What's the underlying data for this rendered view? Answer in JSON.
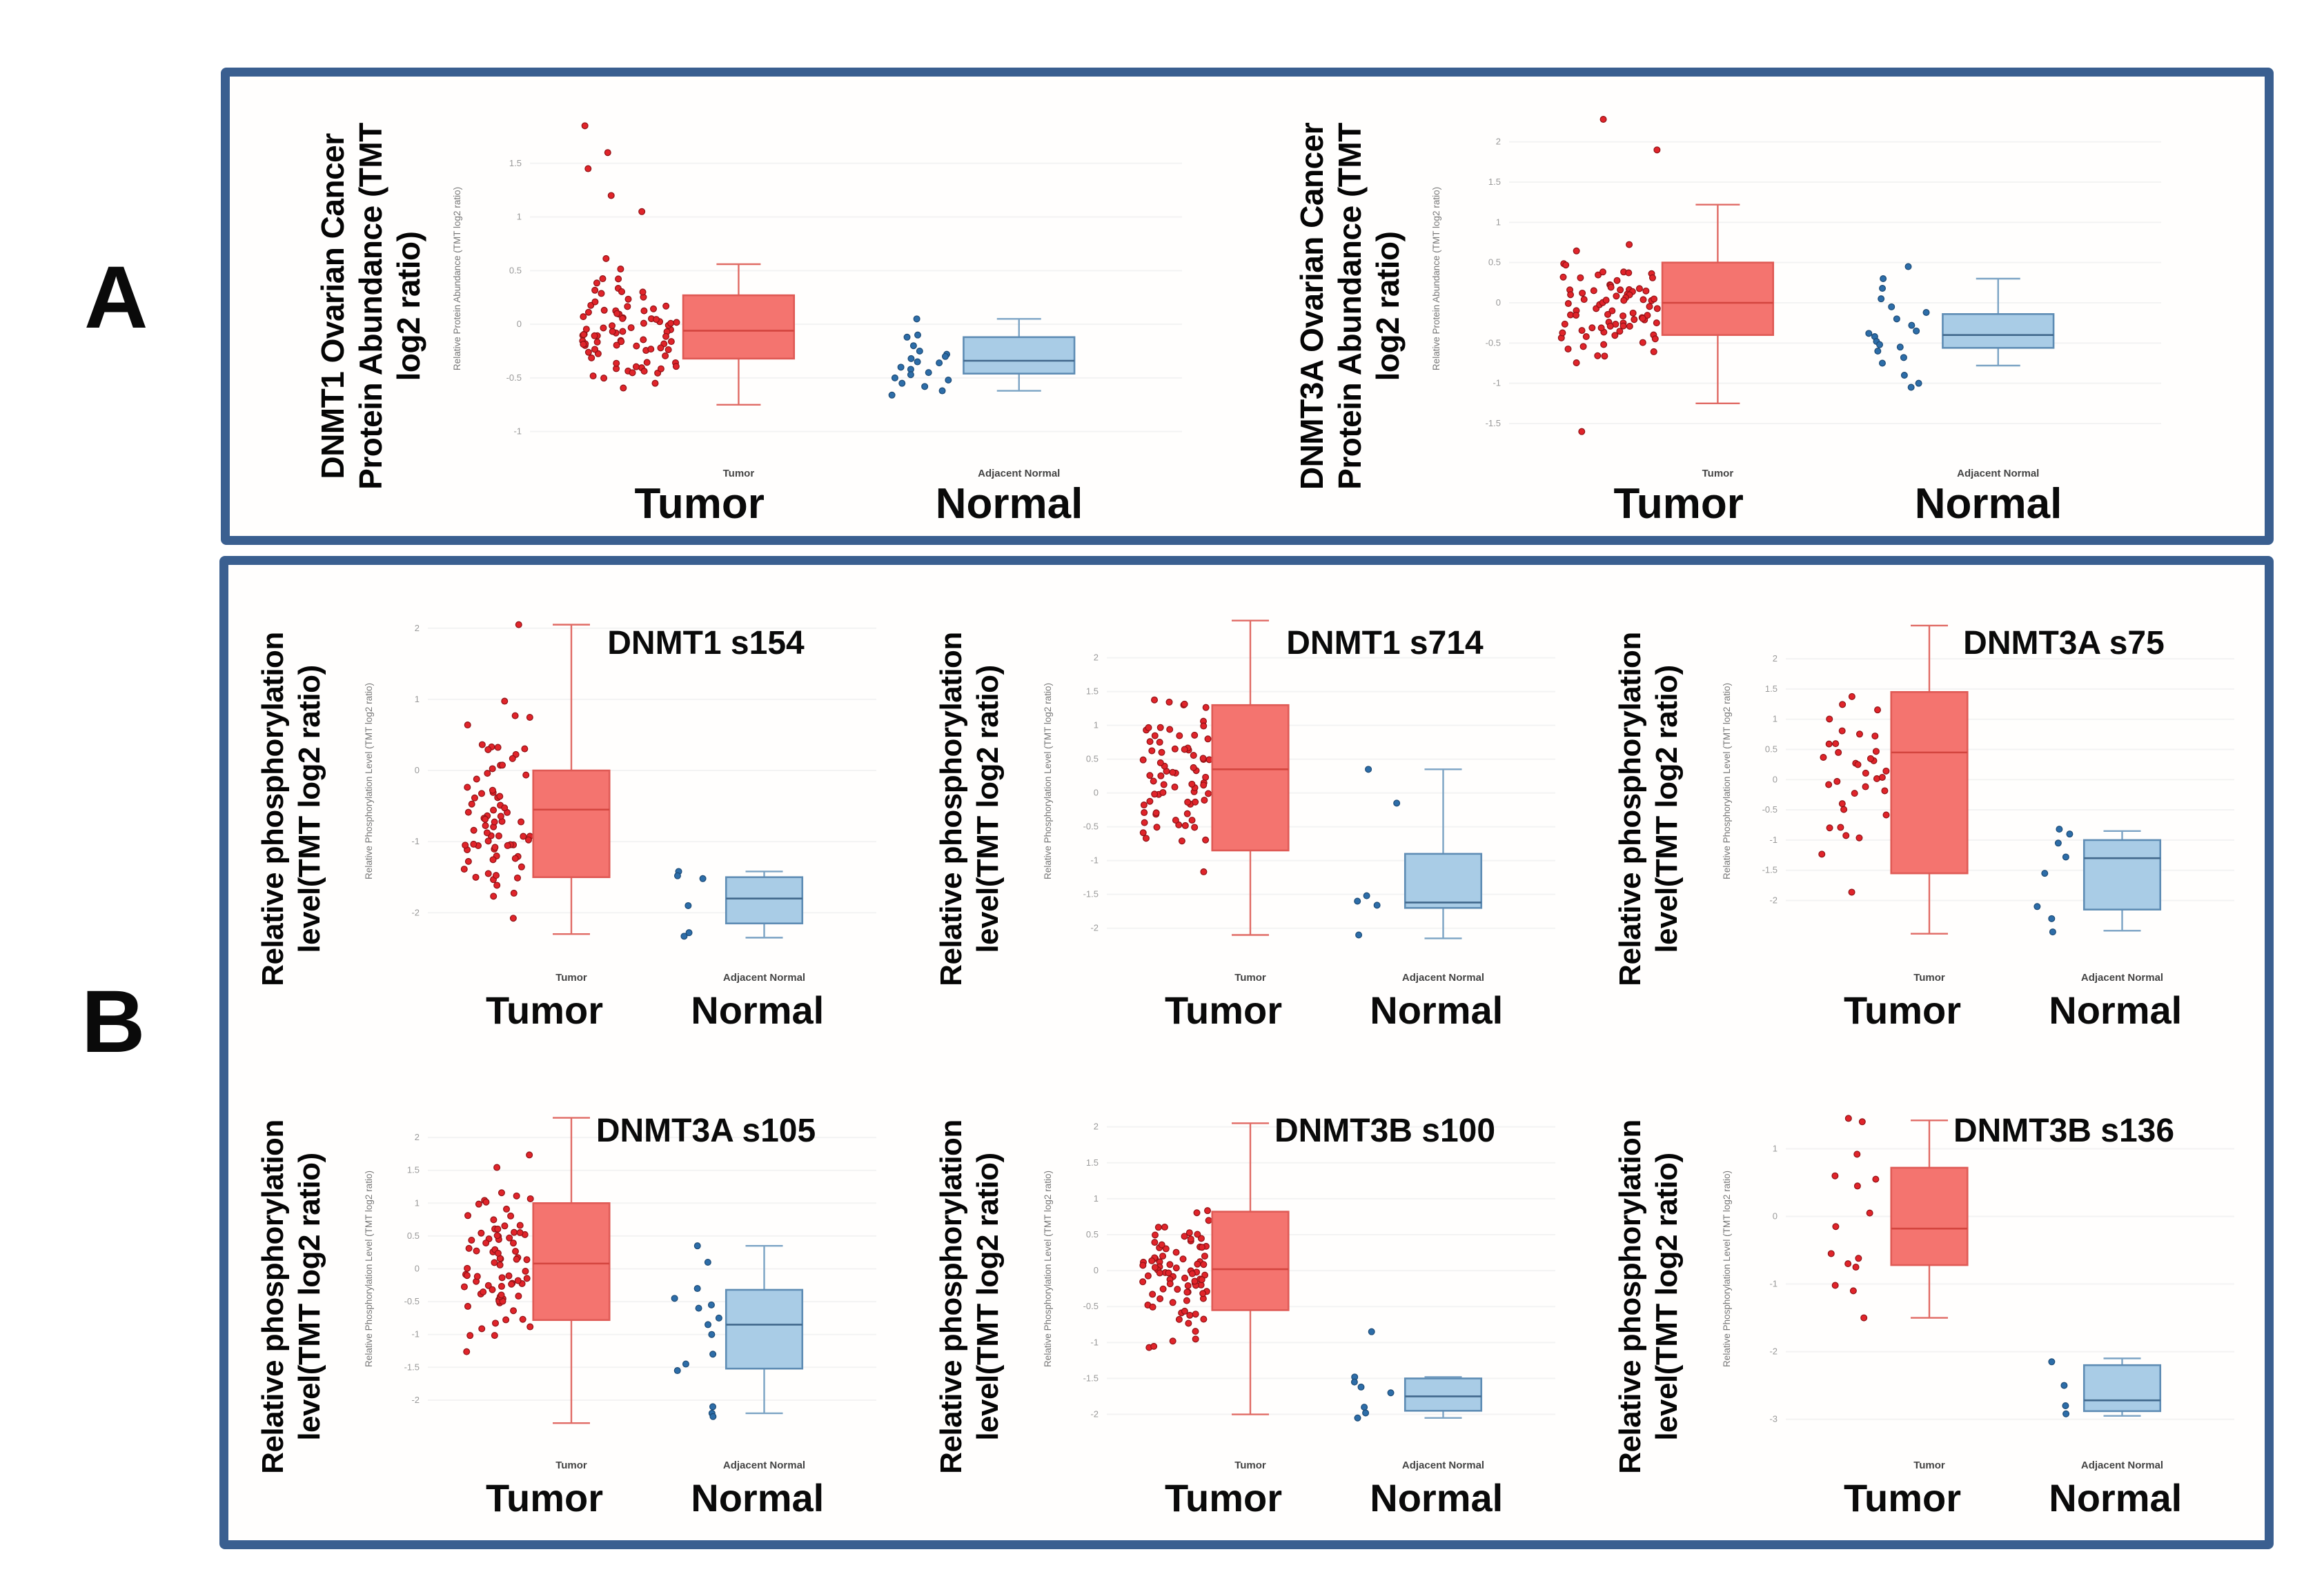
{
  "figure": {
    "panel_a_letter": "A",
    "panel_b_letter": "B"
  },
  "colors": {
    "panel_border": "#3a5f90",
    "tumor_box_fill": "#f4746f",
    "tumor_box_edge": "#df5a55",
    "tumor_median": "#d3453f",
    "tumor_whisker": "#e06a64",
    "tumor_point_fill": "#e0242a",
    "tumor_point_edge": "#8f1115",
    "normal_box_fill": "#a9cce6",
    "normal_box_edge": "#5e8cb4",
    "normal_median": "#41688c",
    "normal_whisker": "#7ba3c4",
    "normal_point_fill": "#2d6da8",
    "normal_point_edge": "#1c4a75",
    "grid_line": "#f3f3f3",
    "tick_text": "#999999",
    "category_text": "#444444",
    "small_axis_text": "#777777",
    "big_label_text": "#0a0a0a",
    "title_text": "#0a0a0a"
  },
  "chart_data": [
    {
      "type": "boxplot-jitter",
      "panel": "A",
      "title": "",
      "ylabel_big": "DNMT1 Ovarian Cancer\nProtein Abundance (TMT\nlog2 ratio)",
      "ylabel_small": "Relative Protein Abundance (TMT log2 ratio)",
      "categories": [
        "Tumor",
        "Adjacent Normal"
      ],
      "big_labels": [
        "Tumor",
        "Normal"
      ],
      "ylim": [
        -1.15,
        2.0
      ],
      "yticks": [
        1.5,
        1.0,
        0.5,
        0.0,
        -0.5,
        -1.0
      ],
      "series": [
        {
          "group": "tumor",
          "box": {
            "lo": -0.75,
            "q1": -0.32,
            "med": -0.06,
            "q3": 0.27,
            "hi": 0.56
          },
          "points": {
            "n": 85,
            "center": -0.05,
            "spread": 0.4,
            "min": -0.95,
            "max": 1.5,
            "outliers": [
              1.85,
              1.6,
              1.45,
              1.2,
              1.05
            ],
            "seed": 11
          }
        },
        {
          "group": "normal",
          "box": {
            "lo": -0.62,
            "q1": -0.46,
            "med": -0.34,
            "q3": -0.12,
            "hi": 0.05
          },
          "points": {
            "list": [
              0.05,
              -0.1,
              -0.12,
              -0.2,
              -0.25,
              -0.28,
              -0.3,
              -0.32,
              -0.35,
              -0.36,
              -0.4,
              -0.42,
              -0.45,
              -0.47,
              -0.5,
              -0.52,
              -0.55,
              -0.58,
              -0.62,
              -0.66
            ],
            "seed": 21
          }
        }
      ]
    },
    {
      "type": "boxplot-jitter",
      "panel": "A",
      "title": "",
      "ylabel_big": "DNMT3A Ovarian Cancer\nProtein Abundance (TMT\nlog2 ratio)",
      "ylabel_small": "Relative Protein Abundance (TMT log2 ratio)",
      "categories": [
        "Tumor",
        "Adjacent Normal"
      ],
      "big_labels": [
        "Tumor",
        "Normal"
      ],
      "ylim": [
        -1.8,
        2.4
      ],
      "yticks": [
        2.0,
        1.5,
        1.0,
        0.5,
        0.0,
        -0.5,
        -1.0,
        -1.5
      ],
      "series": [
        {
          "group": "tumor",
          "box": {
            "lo": -1.25,
            "q1": -0.4,
            "med": 0.0,
            "q3": 0.5,
            "hi": 1.22
          },
          "points": {
            "n": 80,
            "center": 0.02,
            "spread": 0.5,
            "min": -1.3,
            "max": 1.25,
            "outliers": [
              2.28,
              1.9,
              -1.6
            ],
            "seed": 12
          }
        },
        {
          "group": "normal",
          "box": {
            "lo": -0.78,
            "q1": -0.56,
            "med": -0.4,
            "q3": -0.14,
            "hi": 0.3
          },
          "points": {
            "list": [
              0.45,
              0.3,
              0.18,
              0.05,
              -0.05,
              -0.12,
              -0.2,
              -0.28,
              -0.35,
              -0.38,
              -0.42,
              -0.48,
              -0.52,
              -0.55,
              -0.6,
              -0.68,
              -0.75,
              -0.9,
              -1.0,
              -1.05
            ],
            "seed": 22
          }
        }
      ]
    },
    {
      "type": "boxplot-jitter",
      "panel": "B",
      "title": "DNMT1 s154",
      "ylabel_big": "Relative phosphorylation\nlevel(TMT log2 ratio)",
      "ylabel_small": "Relative Phosphorylation Level (TMT log2 ratio)",
      "categories": [
        "Tumor",
        "Adjacent Normal"
      ],
      "big_labels": [
        "Tumor",
        "Normal"
      ],
      "ylim": [
        -2.55,
        2.25
      ],
      "yticks": [
        2.0,
        1.0,
        0.0,
        -1.0,
        -2.0
      ],
      "series": [
        {
          "group": "tumor",
          "box": {
            "lo": -2.3,
            "q1": -1.5,
            "med": -0.55,
            "q3": 0.0,
            "hi": 2.05
          },
          "points": {
            "n": 72,
            "center": -0.6,
            "spread": 0.85,
            "min": -2.35,
            "max": 2.05,
            "outliers": [
              2.05
            ],
            "seed": 13
          }
        },
        {
          "group": "normal",
          "box": {
            "lo": -2.35,
            "q1": -2.15,
            "med": -1.8,
            "q3": -1.5,
            "hi": -1.42
          },
          "points": {
            "list": [
              -1.42,
              -1.48,
              -1.52,
              -1.9,
              -2.28,
              -2.33
            ],
            "seed": 23
          }
        }
      ]
    },
    {
      "type": "boxplot-jitter",
      "panel": "B",
      "title": "DNMT1 s714",
      "ylabel_big": "Relative phosphorylation\nlevel(TMT log2 ratio)",
      "ylabel_small": "Relative Phosphorylation Level (TMT log2 ratio)",
      "categories": [
        "Tumor",
        "Adjacent Normal"
      ],
      "big_labels": [
        "Tumor",
        "Normal"
      ],
      "ylim": [
        -2.35,
        2.7
      ],
      "yticks": [
        2.0,
        1.5,
        1.0,
        0.5,
        0.0,
        -0.5,
        -1.0,
        -1.5,
        -2.0
      ],
      "series": [
        {
          "group": "tumor",
          "box": {
            "lo": -2.1,
            "q1": -0.85,
            "med": 0.35,
            "q3": 1.3,
            "hi": 2.55
          },
          "points": {
            "n": 72,
            "center": 0.25,
            "spread": 0.9,
            "min": -2.15,
            "max": 2.6,
            "outliers": [],
            "seed": 14
          }
        },
        {
          "group": "normal",
          "box": {
            "lo": -2.15,
            "q1": -1.7,
            "med": -1.62,
            "q3": -0.9,
            "hi": 0.35
          },
          "points": {
            "list": [
              0.35,
              -0.15,
              -1.52,
              -1.6,
              -1.66,
              -2.1
            ],
            "seed": 24
          }
        }
      ]
    },
    {
      "type": "boxplot-jitter",
      "panel": "B",
      "title": "DNMT3A s75",
      "ylabel_big": "Relative phosphorylation\nlevel(TMT log2 ratio)",
      "ylabel_small": "Relative Phosphorylation Level (TMT log2 ratio)",
      "categories": [
        "Tumor",
        "Adjacent Normal"
      ],
      "big_labels": [
        "Tumor",
        "Normal"
      ],
      "ylim": [
        -2.85,
        2.8
      ],
      "yticks": [
        2.0,
        1.5,
        1.0,
        0.5,
        0.0,
        -0.5,
        -1.0,
        -1.5,
        -2.0
      ],
      "series": [
        {
          "group": "tumor",
          "box": {
            "lo": -2.55,
            "q1": -1.55,
            "med": 0.45,
            "q3": 1.45,
            "hi": 2.55
          },
          "points": {
            "n": 34,
            "center": 0.15,
            "spread": 1.1,
            "min": -2.5,
            "max": 2.5,
            "outliers": [],
            "seed": 15
          }
        },
        {
          "group": "normal",
          "box": {
            "lo": -2.5,
            "q1": -2.15,
            "med": -1.3,
            "q3": -1.0,
            "hi": -0.85
          },
          "points": {
            "list": [
              -0.82,
              -0.9,
              -1.05,
              -1.28,
              -1.55,
              -2.1,
              -2.3,
              -2.52
            ],
            "seed": 25
          }
        }
      ]
    },
    {
      "type": "boxplot-jitter",
      "panel": "B",
      "title": "DNMT3A s105",
      "ylabel_big": "Relative phosphorylation\nlevel(TMT log2 ratio)",
      "ylabel_small": "Relative Phosphorylation Level (TMT log2 ratio)",
      "categories": [
        "Tumor",
        "Adjacent Normal"
      ],
      "big_labels": [
        "Tumor",
        "Normal"
      ],
      "ylim": [
        -2.6,
        2.6
      ],
      "yticks": [
        2.0,
        1.5,
        1.0,
        0.5,
        0.0,
        -0.5,
        -1.0,
        -1.5,
        -2.0
      ],
      "series": [
        {
          "group": "tumor",
          "box": {
            "lo": -2.35,
            "q1": -0.78,
            "med": 0.08,
            "q3": 1.0,
            "hi": 2.3
          },
          "points": {
            "n": 78,
            "center": 0.05,
            "spread": 0.9,
            "min": -2.4,
            "max": 2.35,
            "outliers": [],
            "seed": 16
          }
        },
        {
          "group": "normal",
          "box": {
            "lo": -2.2,
            "q1": -1.52,
            "med": -0.85,
            "q3": -0.32,
            "hi": 0.35
          },
          "points": {
            "list": [
              0.35,
              0.1,
              -0.3,
              -0.45,
              -0.55,
              -0.6,
              -0.75,
              -0.85,
              -1.0,
              -1.3,
              -1.45,
              -1.55,
              -2.1,
              -2.2,
              -2.25
            ],
            "seed": 26
          }
        }
      ]
    },
    {
      "type": "boxplot-jitter",
      "panel": "B",
      "title": "DNMT3B s100",
      "ylabel_big": "Relative phosphorylation\nlevel(TMT log2 ratio)",
      "ylabel_small": "Relative Phosphorylation Level (TMT log2 ratio)",
      "categories": [
        "Tumor",
        "Adjacent Normal"
      ],
      "big_labels": [
        "Tumor",
        "Normal"
      ],
      "ylim": [
        -2.35,
        2.4
      ],
      "yticks": [
        2.0,
        1.5,
        1.0,
        0.5,
        0.0,
        -0.5,
        -1.0,
        -1.5,
        -2.0
      ],
      "series": [
        {
          "group": "tumor",
          "box": {
            "lo": -2.0,
            "q1": -0.55,
            "med": 0.02,
            "q3": 0.82,
            "hi": 2.05
          },
          "points": {
            "n": 82,
            "center": 0.0,
            "spread": 0.78,
            "min": -2.05,
            "max": 2.1,
            "outliers": [],
            "seed": 17
          }
        },
        {
          "group": "normal",
          "box": {
            "lo": -2.05,
            "q1": -1.95,
            "med": -1.75,
            "q3": -1.5,
            "hi": -1.48
          },
          "points": {
            "list": [
              -0.85,
              -1.48,
              -1.55,
              -1.62,
              -1.7,
              -1.9,
              -1.98,
              -2.05
            ],
            "seed": 27
          }
        }
      ]
    },
    {
      "type": "boxplot-jitter",
      "panel": "B",
      "title": "DNMT3B s136",
      "ylabel_big": "Relative phosphorylation\nlevel(TMT log2 ratio)",
      "ylabel_small": "Relative Phosphorylation Level (TMT log2 ratio)",
      "categories": [
        "Tumor",
        "Adjacent Normal"
      ],
      "big_labels": [
        "Tumor",
        "Normal"
      ],
      "ylim": [
        -3.3,
        1.75
      ],
      "yticks": [
        1.0,
        0.0,
        -1.0,
        -2.0,
        -3.0
      ],
      "series": [
        {
          "group": "tumor",
          "box": {
            "lo": -1.5,
            "q1": -0.72,
            "med": -0.18,
            "q3": 0.72,
            "hi": 1.42
          },
          "points": {
            "list": [
              1.45,
              1.4,
              0.92,
              0.6,
              0.55,
              0.45,
              0.05,
              -0.15,
              -0.55,
              -0.62,
              -0.7,
              -0.75,
              -1.02,
              -1.1,
              -1.5
            ],
            "seed": 18
          }
        },
        {
          "group": "normal",
          "box": {
            "lo": -2.95,
            "q1": -2.88,
            "med": -2.72,
            "q3": -2.2,
            "hi": -2.1
          },
          "points": {
            "list": [
              -2.15,
              -2.5,
              -2.8,
              -2.92
            ],
            "seed": 28
          }
        }
      ]
    }
  ]
}
